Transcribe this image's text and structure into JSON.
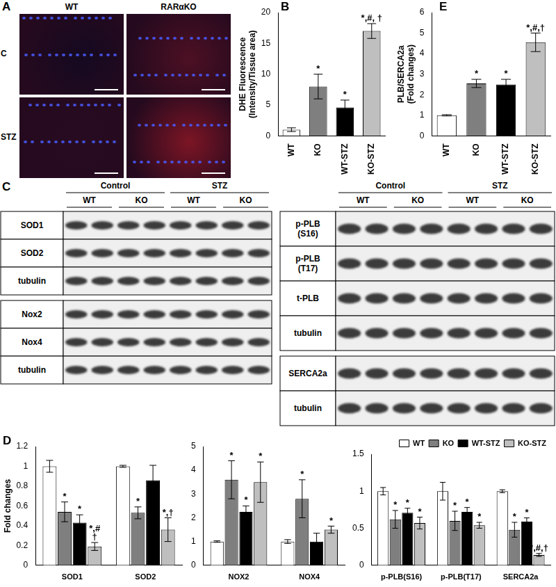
{
  "figure": {
    "panel_a": {
      "panel": "A",
      "columns": [
        "WT",
        "RARαKO"
      ],
      "rows": [
        "C",
        "STZ"
      ]
    },
    "panel_c": {
      "panel": "C",
      "groups": [
        "Control",
        "STZ"
      ],
      "lanes": [
        "WT",
        "KO"
      ],
      "left_rows": [
        [
          "SOD1",
          "SOD2",
          "tubulin"
        ],
        [
          "Nox2",
          "Nox4",
          "tubulin"
        ]
      ],
      "right_rows": [
        [
          [
            "p-PLB",
            "(S16)"
          ],
          [
            "p-PLB",
            "(T17)"
          ],
          "t-PLB",
          "tubulin"
        ],
        [
          "SERCA2a",
          "tubulin"
        ]
      ]
    }
  },
  "chart_data": [
    {
      "type": "bar",
      "panel": "B",
      "y_label": [
        "DHE Fluorescence",
        "(Intensity/Tissue area)"
      ],
      "categories": [
        "WT",
        "KO",
        "WT-STZ",
        "KO-STZ"
      ],
      "values": [
        1,
        8,
        4.6,
        17
      ],
      "errors": [
        0.3,
        2,
        1.2,
        1.2
      ],
      "annotations": [
        null,
        "*",
        "*",
        "*,#, †"
      ],
      "colors": [
        "#ffffff",
        "#7f7f7f",
        "#000000",
        "#bfbfbf"
      ],
      "ylim": [
        0,
        20
      ],
      "yticks": [
        0,
        5,
        10,
        15,
        20
      ],
      "grid": false
    },
    {
      "type": "bar",
      "panel": "E",
      "y_label": [
        "PLB/SERCA2a",
        "(Fold changes)"
      ],
      "categories": [
        "WT",
        "KO",
        "WT-STZ",
        "KO-STZ"
      ],
      "values": [
        1,
        2.55,
        2.5,
        4.55
      ],
      "errors": [
        0.03,
        0.2,
        0.25,
        0.45
      ],
      "annotations": [
        null,
        "*",
        "*",
        "*,#,†"
      ],
      "colors": [
        "#ffffff",
        "#7f7f7f",
        "#000000",
        "#bfbfbf"
      ],
      "ylim": [
        0,
        6
      ],
      "yticks": [
        0,
        1,
        2,
        3,
        4,
        5,
        6
      ],
      "grid": false
    },
    {
      "type": "bar",
      "panel": "D",
      "y_label": "Fold changes",
      "categories": [
        "SOD1",
        "SOD2"
      ],
      "series": [
        {
          "name": "WT",
          "color": "#ffffff",
          "values": [
            1,
            1
          ],
          "errors": [
            0.06,
            0.01
          ],
          "annotations": [
            null,
            null
          ]
        },
        {
          "name": "KO",
          "color": "#7f7f7f",
          "values": [
            0.54,
            0.53
          ],
          "errors": [
            0.1,
            0.06
          ],
          "annotations": [
            "*",
            "*"
          ]
        },
        {
          "name": "WT-STZ",
          "color": "#000000",
          "values": [
            0.43,
            0.86
          ],
          "errors": [
            0.08,
            0.15
          ],
          "annotations": [
            "*",
            null
          ]
        },
        {
          "name": "KO-STZ",
          "color": "#bfbfbf",
          "values": [
            0.19,
            0.36
          ],
          "errors": [
            0.04,
            0.12
          ],
          "annotations": [
            [
              "*,#",
              "†"
            ],
            "*,†"
          ]
        }
      ],
      "ylim": [
        0,
        1.2
      ],
      "yticks": [
        0,
        0.2,
        0.4,
        0.6,
        0.8,
        1,
        1.2
      ],
      "grid": false
    },
    {
      "type": "bar",
      "categories": [
        "NOX2",
        "NOX4"
      ],
      "series": [
        {
          "name": "WT",
          "color": "#ffffff",
          "values": [
            1,
            1
          ],
          "errors": [
            0.03,
            0.08
          ],
          "annotations": [
            null,
            null
          ]
        },
        {
          "name": "KO",
          "color": "#7f7f7f",
          "values": [
            3.6,
            2.8
          ],
          "errors": [
            0.8,
            0.8
          ],
          "annotations": [
            "*",
            "*"
          ]
        },
        {
          "name": "WT-STZ",
          "color": "#000000",
          "values": [
            2.25,
            1
          ],
          "errors": [
            0.25,
            0.35
          ],
          "annotations": [
            "*",
            null
          ]
        },
        {
          "name": "KO-STZ",
          "color": "#bfbfbf",
          "values": [
            3.5,
            1.5
          ],
          "errors": [
            0.85,
            0.15
          ],
          "annotations": [
            "*",
            "*"
          ]
        }
      ],
      "ylim": [
        0,
        5
      ],
      "yticks": [
        0,
        1,
        2,
        3,
        4,
        5
      ],
      "grid": false
    },
    {
      "type": "bar",
      "categories": [
        "p-PLB(S16)",
        "p-PLB(T17)",
        "SERCA2a"
      ],
      "series": [
        {
          "name": "WT",
          "color": "#ffffff",
          "values": [
            1,
            1,
            1
          ],
          "errors": [
            0.05,
            0.12,
            0.02
          ],
          "annotations": [
            null,
            null,
            null
          ]
        },
        {
          "name": "KO",
          "color": "#7f7f7f",
          "values": [
            0.62,
            0.6,
            0.48
          ],
          "errors": [
            0.12,
            0.13,
            0.1
          ],
          "annotations": [
            "*",
            "*",
            "*"
          ]
        },
        {
          "name": "WT-STZ",
          "color": "#000000",
          "values": [
            0.71,
            0.72,
            0.59
          ],
          "errors": [
            0.06,
            0.06,
            0.05
          ],
          "annotations": [
            "*",
            "*",
            "*"
          ]
        },
        {
          "name": "KO-STZ",
          "color": "#bfbfbf",
          "values": [
            0.57,
            0.54,
            0.14
          ],
          "errors": [
            0.08,
            0.04,
            0.02
          ],
          "annotations": [
            "*",
            "*",
            "*,#,†"
          ]
        }
      ],
      "ylim": [
        0,
        1.5
      ],
      "yticks": [
        0,
        0.5,
        1,
        1.5
      ],
      "grid": false,
      "legend": "top"
    }
  ]
}
